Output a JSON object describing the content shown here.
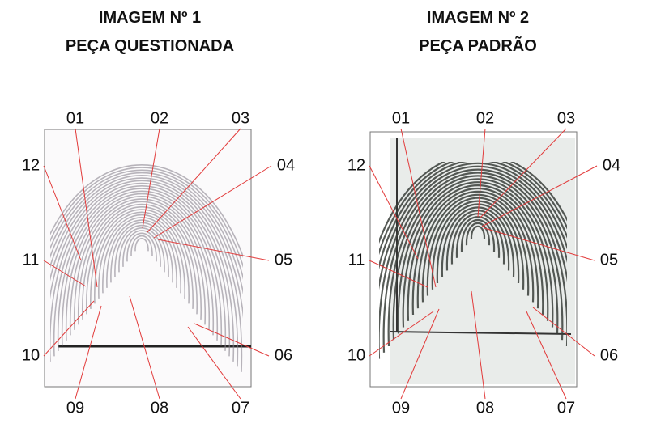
{
  "panels": [
    {
      "title": [
        "IMAGEM Nº 1",
        "PEÇA QUESTIONADA"
      ],
      "labels": [
        "01",
        "02",
        "03",
        "04",
        "05",
        "06",
        "07",
        "08",
        "09",
        "10",
        "11",
        "12"
      ]
    },
    {
      "title": [
        "IMAGEM Nº 2",
        "PEÇA PADRÃO"
      ],
      "labels": [
        "01",
        "02",
        "03",
        "04",
        "05",
        "06",
        "07",
        "08",
        "09",
        "10",
        "11",
        "12"
      ]
    }
  ]
}
